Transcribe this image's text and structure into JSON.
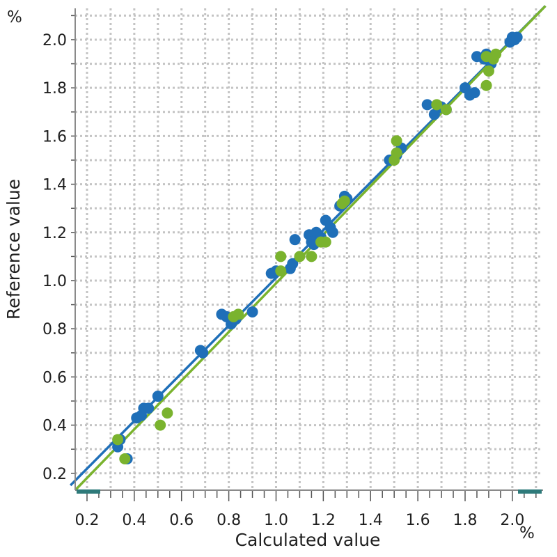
{
  "chart_data": {
    "type": "scatter",
    "xlabel": "Calculated value",
    "ylabel": "Reference value",
    "x_unit": "%",
    "y_unit": "%",
    "xlim": [
      0.15,
      2.13
    ],
    "ylim": [
      0.13,
      2.13
    ],
    "x_ticks": [
      "0.2",
      "0.4",
      "0.6",
      "0.8",
      "1.0",
      "1.2",
      "1.4",
      "1.6",
      "1.8",
      "2.0"
    ],
    "y_ticks": [
      "0.2",
      "0.4",
      "0.6",
      "0.8",
      "1.0",
      "1.2",
      "1.4",
      "1.6",
      "1.8",
      "2.0"
    ],
    "grid": true,
    "colors": {
      "blue": "#1f6fb8",
      "green": "#7ab32e",
      "scrollbar": "#2e7a7a"
    },
    "series": [
      {
        "color": "blue",
        "points": [
          [
            0.34,
            0.34
          ],
          [
            0.33,
            0.31
          ],
          [
            0.37,
            0.26
          ],
          [
            0.41,
            0.43
          ],
          [
            0.43,
            0.44
          ],
          [
            0.44,
            0.47
          ],
          [
            0.46,
            0.47
          ],
          [
            0.5,
            0.52
          ],
          [
            0.68,
            0.71
          ],
          [
            0.69,
            0.7
          ],
          [
            0.77,
            0.86
          ],
          [
            0.79,
            0.85
          ],
          [
            0.81,
            0.82
          ],
          [
            0.83,
            0.84
          ],
          [
            0.9,
            0.87
          ],
          [
            0.98,
            1.03
          ],
          [
            1.0,
            1.04
          ],
          [
            1.06,
            1.05
          ],
          [
            1.07,
            1.07
          ],
          [
            1.08,
            1.17
          ],
          [
            1.14,
            1.19
          ],
          [
            1.15,
            1.16
          ],
          [
            1.16,
            1.15
          ],
          [
            1.17,
            1.2
          ],
          [
            1.19,
            1.18
          ],
          [
            1.21,
            1.25
          ],
          [
            1.23,
            1.22
          ],
          [
            1.24,
            1.2
          ],
          [
            1.27,
            1.31
          ],
          [
            1.29,
            1.35
          ],
          [
            1.3,
            1.34
          ],
          [
            1.48,
            1.5
          ],
          [
            1.51,
            1.52
          ],
          [
            1.53,
            1.55
          ],
          [
            1.64,
            1.73
          ],
          [
            1.67,
            1.69
          ],
          [
            1.7,
            1.72
          ],
          [
            1.72,
            1.71
          ],
          [
            1.8,
            1.8
          ],
          [
            1.82,
            1.77
          ],
          [
            1.84,
            1.78
          ],
          [
            1.85,
            1.93
          ],
          [
            1.88,
            1.92
          ],
          [
            1.89,
            1.94
          ],
          [
            1.91,
            1.9
          ],
          [
            1.99,
            1.99
          ],
          [
            2.0,
            2.01
          ],
          [
            2.01,
            2.0
          ],
          [
            2.02,
            2.01
          ]
        ],
        "fit": [
          [
            0.13,
            0.15
          ],
          [
            2.14,
            2.14
          ]
        ]
      },
      {
        "color": "green",
        "points": [
          [
            0.33,
            0.34
          ],
          [
            0.36,
            0.26
          ],
          [
            0.51,
            0.4
          ],
          [
            0.54,
            0.45
          ],
          [
            0.82,
            0.85
          ],
          [
            0.84,
            0.86
          ],
          [
            1.02,
            1.1
          ],
          [
            1.02,
            1.04
          ],
          [
            1.1,
            1.1
          ],
          [
            1.15,
            1.1
          ],
          [
            1.19,
            1.16
          ],
          [
            1.21,
            1.16
          ],
          [
            1.28,
            1.32
          ],
          [
            1.29,
            1.33
          ],
          [
            1.5,
            1.5
          ],
          [
            1.51,
            1.53
          ],
          [
            1.51,
            1.58
          ],
          [
            1.68,
            1.73
          ],
          [
            1.72,
            1.71
          ],
          [
            1.89,
            1.81
          ],
          [
            1.89,
            1.93
          ],
          [
            1.9,
            1.87
          ],
          [
            1.92,
            1.92
          ],
          [
            1.93,
            1.94
          ]
        ],
        "fit": [
          [
            0.15,
            0.13
          ],
          [
            2.14,
            2.14
          ]
        ]
      }
    ]
  }
}
